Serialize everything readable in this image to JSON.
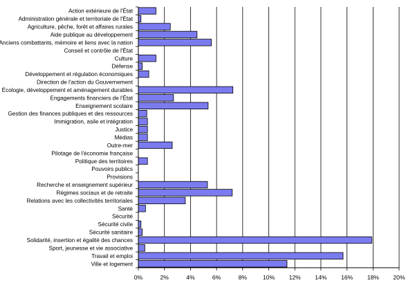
{
  "chart_data": {
    "type": "bar",
    "orientation": "horizontal",
    "title": "",
    "xlabel": "",
    "ylabel": "",
    "xlim": [
      0,
      20
    ],
    "grid": true,
    "legend": "none",
    "bar_color": "#7b7bf0",
    "bar_edge_color": "#000000",
    "tick_labels": [
      "0%",
      "2%",
      "4%",
      "6%",
      "8%",
      "10%",
      "12%",
      "14%",
      "16%",
      "18%",
      "20%"
    ],
    "categories": [
      "Action extérieure de l'État",
      "Administration générale et territoriale de l'État",
      "Agriculture, pêche, forêt et affaires rurales",
      "Aide publique au développement",
      "Anciens combattants, mémoire et liens avec la nation",
      "Conseil et contrôle de l'État",
      "Culture",
      "Défense",
      "Développement et régulation économiques",
      "Direction de l'action du Gouvernement",
      "Écologie, développement et aménagement durables",
      "Engagements financiers de l'État",
      "Enseignement scolaire",
      "Gestion des finances publiques et des ressources",
      "Immigration, asile et intégration",
      "Justice",
      "Médias",
      "Outre-mer",
      "Pilotage de l'économie française",
      "Politique des territoires",
      "Pouvoirs publics",
      "Provisions",
      "Recherche et enseignement supérieur",
      "Régimes sociaux et de retraite",
      "Relations avec les collectivités territoriales",
      "Santé",
      "Sécurité",
      "Sécurité civile",
      "Sécurité sanitaire",
      "Solidarité, insertion et égalité des chances",
      "Sport, jeunesse et vie associative",
      "Travail et emploi",
      "Ville et logement"
    ],
    "values": [
      1.35,
      0.2,
      2.45,
      4.5,
      5.6,
      0.0,
      1.35,
      0.3,
      0.8,
      0.0,
      7.25,
      2.7,
      5.35,
      0.65,
      0.7,
      0.7,
      0.7,
      2.6,
      0.0,
      0.7,
      0.0,
      0.0,
      5.3,
      7.2,
      3.6,
      0.55,
      0.0,
      0.2,
      0.3,
      17.9,
      0.5,
      15.7,
      11.4
    ]
  }
}
